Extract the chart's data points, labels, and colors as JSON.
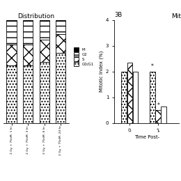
{
  "title_left": "Distribution",
  "bar_categories": [
    "2 Gy + 75nM- 1 hr",
    "2 Gy + 75nM- 3 hr",
    "2 Gy + 75nM- 6 hr",
    "2 Gy + 75nM- 24 hr"
  ],
  "stacked_data": {
    "M": [
      1,
      1,
      1,
      1
    ],
    "G2": [
      23,
      23,
      18,
      13
    ],
    "S": [
      20,
      20,
      22,
      18
    ],
    "G0G1": [
      56,
      56,
      59,
      68
    ]
  },
  "mitotic_ylabel": "Mitotic Index (%)",
  "mitotic_xlabel": "Time Post-",
  "mitotic_ylim": [
    0,
    4
  ],
  "mitotic_yticks": [
    0,
    1,
    2,
    3,
    4
  ],
  "mitotic_bars": {
    "group0": [
      2.0,
      2.35,
      2.0
    ],
    "group1": [
      2.0,
      0.5,
      0.65
    ]
  },
  "background": "#ffffff"
}
